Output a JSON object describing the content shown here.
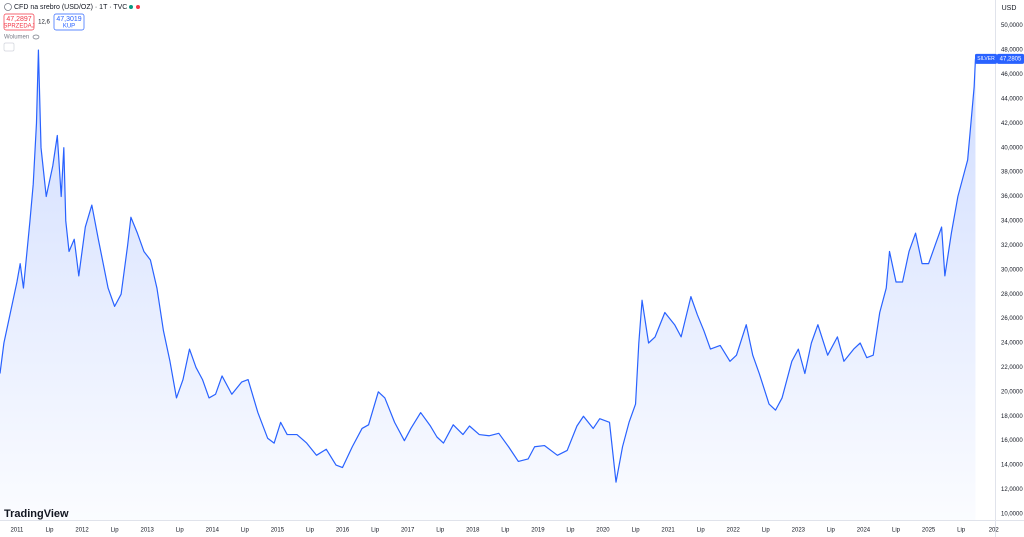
{
  "toolbar": {
    "symbol": "CFD na srebro (USD/OZ) · 1T · TVC",
    "sell_price": "47,2897",
    "sell_label": "SPRZEDAJ",
    "spread": "12,6",
    "buy_price": "47,3019",
    "buy_label": "KUP",
    "volume": "Wolumen",
    "logo": "TradingView"
  },
  "chart_data": {
    "type": "line",
    "currency": "USD",
    "grid": false,
    "x": [
      2010.74,
      2010.8,
      2010.9,
      2011.0,
      2011.05,
      2011.1,
      2011.2,
      2011.25,
      2011.3,
      2011.33,
      2011.37,
      2011.45,
      2011.55,
      2011.62,
      2011.68,
      2011.72,
      2011.75,
      2011.8,
      2011.88,
      2011.95,
      2012.05,
      2012.15,
      2012.25,
      2012.4,
      2012.5,
      2012.6,
      2012.7,
      2012.75,
      2012.85,
      2012.95,
      2013.05,
      2013.15,
      2013.25,
      2013.35,
      2013.45,
      2013.55,
      2013.65,
      2013.75,
      2013.85,
      2013.95,
      2014.05,
      2014.15,
      2014.3,
      2014.45,
      2014.55,
      2014.7,
      2014.85,
      2014.95,
      2015.05,
      2015.15,
      2015.3,
      2015.45,
      2015.6,
      2015.75,
      2015.9,
      2016.0,
      2016.15,
      2016.3,
      2016.4,
      2016.55,
      2016.65,
      2016.8,
      2016.95,
      2017.05,
      2017.2,
      2017.35,
      2017.45,
      2017.55,
      2017.7,
      2017.85,
      2017.95,
      2018.1,
      2018.25,
      2018.4,
      2018.55,
      2018.7,
      2018.85,
      2018.95,
      2019.1,
      2019.3,
      2019.45,
      2019.6,
      2019.7,
      2019.85,
      2019.95,
      2020.1,
      2020.2,
      2020.3,
      2020.4,
      2020.5,
      2020.55,
      2020.6,
      2020.7,
      2020.8,
      2020.95,
      2021.1,
      2021.2,
      2021.35,
      2021.45,
      2021.55,
      2021.65,
      2021.8,
      2021.95,
      2022.05,
      2022.2,
      2022.3,
      2022.4,
      2022.55,
      2022.65,
      2022.75,
      2022.9,
      2023.0,
      2023.1,
      2023.2,
      2023.3,
      2023.45,
      2023.6,
      2023.7,
      2023.85,
      2023.95,
      2024.05,
      2024.15,
      2024.25,
      2024.35,
      2024.4,
      2024.5,
      2024.6,
      2024.7,
      2024.8,
      2024.9,
      2025.0,
      2025.1,
      2025.2,
      2025.25,
      2025.35,
      2025.45,
      2025.55,
      2025.6,
      2025.65,
      2025.7,
      2025.72
    ],
    "series": [
      {
        "name": "SILVER",
        "color": "#2962ff",
        "values": [
          21.5,
          24,
          26.5,
          29,
          30.5,
          28.5,
          34,
          37,
          42,
          48,
          40,
          36,
          38.5,
          41,
          36,
          40,
          34,
          31.5,
          32.5,
          29.5,
          33.5,
          35.3,
          32.5,
          28.5,
          27,
          28,
          32,
          34.3,
          33,
          31.5,
          30.8,
          28.5,
          25,
          22.5,
          19.5,
          21,
          23.5,
          22,
          21,
          19.5,
          19.8,
          21.3,
          19.8,
          20.8,
          21,
          18.3,
          16.2,
          15.8,
          17.5,
          16.5,
          16.5,
          15.8,
          14.8,
          15.3,
          14,
          13.8,
          15.5,
          17,
          17.3,
          20,
          19.5,
          17.5,
          16,
          17,
          18.3,
          17.2,
          16.3,
          15.8,
          17.3,
          16.5,
          17.2,
          16.5,
          16.4,
          16.6,
          15.5,
          14.3,
          14.5,
          15.5,
          15.6,
          14.8,
          15.2,
          17.2,
          18,
          17,
          17.8,
          17.5,
          12.6,
          15.5,
          17.5,
          19,
          24,
          27.5,
          24,
          24.5,
          26.5,
          25.5,
          24.5,
          27.8,
          26.3,
          25,
          23.5,
          23.8,
          22.5,
          23,
          25.5,
          23,
          21.5,
          19,
          18.5,
          19.5,
          22.5,
          23.5,
          21.5,
          24,
          25.5,
          23,
          24.5,
          22.5,
          23.5,
          24,
          22.8,
          23,
          26.5,
          28.5,
          31.5,
          29,
          29,
          31.5,
          33,
          30.5,
          30.5,
          32,
          33.5,
          29.5,
          33,
          36,
          38,
          39,
          42,
          45,
          47.2805
        ]
      }
    ],
    "price_tag": {
      "value": 47.2805,
      "label": "47,2805"
    },
    "xlim": [
      2010.74,
      2026.02
    ],
    "ylim": [
      9.5,
      52.1
    ],
    "xticks": [
      2011,
      {
        "value": 2011.5,
        "label": "Lip"
      },
      2012,
      {
        "value": 2012.5,
        "label": "Lip"
      },
      2013,
      {
        "value": 2013.5,
        "label": "Lip"
      },
      2014,
      {
        "value": 2014.5,
        "label": "Lip"
      },
      2015,
      {
        "value": 2015.5,
        "label": "Lip"
      },
      2016,
      {
        "value": 2016.5,
        "label": "Lip"
      },
      2017,
      {
        "value": 2017.5,
        "label": "Lip"
      },
      2018,
      {
        "value": 2018.5,
        "label": "Lip"
      },
      2019,
      {
        "value": 2019.5,
        "label": "Lip"
      },
      2020,
      {
        "value": 2020.5,
        "label": "Lip"
      },
      2021,
      {
        "value": 2021.5,
        "label": "Lip"
      },
      2022,
      {
        "value": 2022.5,
        "label": "Lip"
      },
      2023,
      {
        "value": 2023.5,
        "label": "Lip"
      },
      2024,
      {
        "value": 2024.5,
        "label": "Lip"
      },
      2025,
      {
        "value": 2025.5,
        "label": "Lip"
      },
      {
        "value": 2026,
        "label": "202"
      }
    ],
    "yticks": [
      {
        "value": 10,
        "label": "10,0000"
      },
      {
        "value": 12,
        "label": "12,0000"
      },
      {
        "value": 14,
        "label": "14,0000"
      },
      {
        "value": 16,
        "label": "16,0000"
      },
      {
        "value": 18,
        "label": "18,0000"
      },
      {
        "value": 20,
        "label": "20,0000"
      },
      {
        "value": 22,
        "label": "22,0000"
      },
      {
        "value": 24,
        "label": "24,0000"
      },
      {
        "value": 26,
        "label": "26,0000"
      },
      {
        "value": 28,
        "label": "28,0000"
      },
      {
        "value": 30,
        "label": "30,0000"
      },
      {
        "value": 32,
        "label": "32,0000"
      },
      {
        "value": 34,
        "label": "34,0000"
      },
      {
        "value": 36,
        "label": "36,0000"
      },
      {
        "value": 38,
        "label": "38,0000"
      },
      {
        "value": 40,
        "label": "40,0000"
      },
      {
        "value": 42,
        "label": "42,0000"
      },
      {
        "value": 44,
        "label": "44,0000"
      },
      {
        "value": 46,
        "label": "46,0000"
      },
      {
        "value": 48,
        "label": "48,0000"
      },
      {
        "value": 50,
        "label": "50,0000"
      }
    ]
  }
}
